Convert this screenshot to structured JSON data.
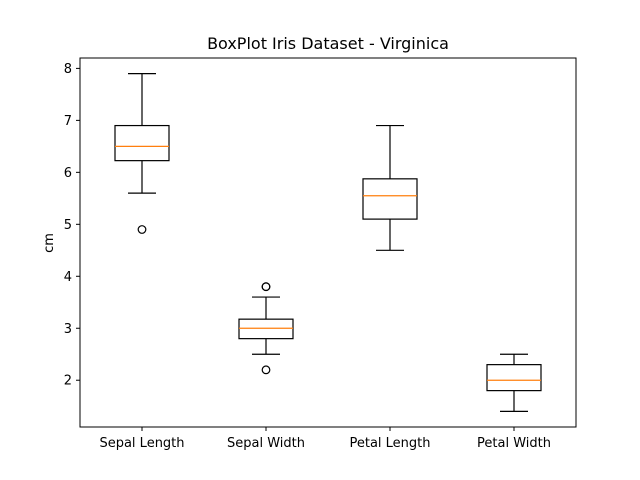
{
  "chart_data": {
    "type": "box",
    "title": "BoxPlot Iris Dataset - Virginica",
    "xlabel": "",
    "ylabel": "cm",
    "ylim": [
      1.1,
      8.2
    ],
    "yticks": [
      "2",
      "3",
      "4",
      "5",
      "6",
      "7",
      "8"
    ],
    "grid": false,
    "median_color": "#ff7f0e",
    "box_color": "#000000",
    "categories": [
      "Sepal Length",
      "Sepal Width",
      "Petal Length",
      "Petal Width"
    ],
    "boxes": [
      {
        "category": "Sepal Length",
        "whisker_low": 5.6,
        "q1": 6.225,
        "median": 6.5,
        "q3": 6.9,
        "whisker_high": 7.9,
        "outliers": [
          4.9
        ]
      },
      {
        "category": "Sepal Width",
        "whisker_low": 2.5,
        "q1": 2.8,
        "median": 3.0,
        "q3": 3.175,
        "whisker_high": 3.6,
        "outliers": [
          2.2,
          3.8,
          3.8
        ]
      },
      {
        "category": "Petal Length",
        "whisker_low": 4.5,
        "q1": 5.1,
        "median": 5.55,
        "q3": 5.875,
        "whisker_high": 6.9,
        "outliers": []
      },
      {
        "category": "Petal Width",
        "whisker_low": 1.4,
        "q1": 1.8,
        "median": 2.0,
        "q3": 2.3,
        "whisker_high": 2.5,
        "outliers": []
      }
    ]
  }
}
